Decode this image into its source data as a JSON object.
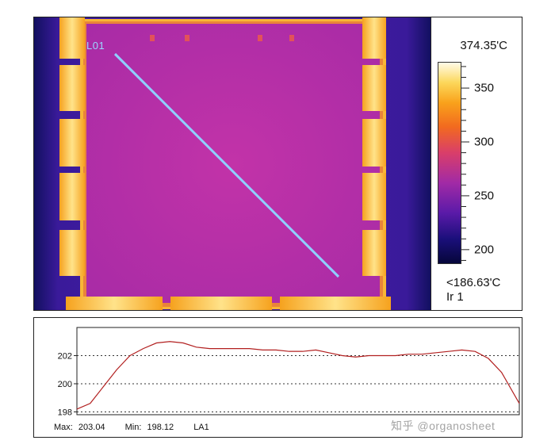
{
  "thermal": {
    "line_label": "L01",
    "max_label": "374.35'C",
    "min_label": "<186.63'C",
    "ir_label": "Ir 1",
    "colorbar_ticks": [
      {
        "label": "350",
        "value": 350
      },
      {
        "label": "300",
        "value": 300
      },
      {
        "label": "250",
        "value": 250
      },
      {
        "label": "200",
        "value": 200
      }
    ],
    "colorbar_range": [
      186.63,
      374.35
    ],
    "colors": {
      "line": "#8fd0ff",
      "die": "#b82fa8",
      "pads": "#fcd35a"
    }
  },
  "profile": {
    "max_text": "Max:",
    "max_value": "203.04",
    "min_text": "Min:",
    "min_value": "198.12",
    "series_label": "LA1",
    "watermark": "知乎 @organosheet"
  },
  "chart_data": {
    "type": "line",
    "title": "",
    "xlabel": "",
    "ylabel": "",
    "ylim": [
      197.8,
      204
    ],
    "yticks": [
      198,
      200,
      202
    ],
    "grid": "dotted horizontal at y ticks",
    "x": [
      0,
      3,
      6,
      9,
      12,
      15,
      18,
      21,
      24,
      27,
      30,
      33,
      36,
      39,
      42,
      45,
      48,
      51,
      54,
      57,
      60,
      63,
      66,
      69,
      72,
      75,
      78,
      81,
      84,
      87,
      90,
      93,
      96,
      100
    ],
    "series": [
      {
        "color": "#b22020",
        "values": [
          198.2,
          198.6,
          199.8,
          201.0,
          202.0,
          202.5,
          202.9,
          203.0,
          202.9,
          202.6,
          202.5,
          202.5,
          202.5,
          202.5,
          202.4,
          202.4,
          202.3,
          202.3,
          202.4,
          202.2,
          202.0,
          201.9,
          202.0,
          202.0,
          202.0,
          202.1,
          202.1,
          202.2,
          202.3,
          202.4,
          202.3,
          201.8,
          200.8,
          198.6
        ]
      }
    ]
  }
}
